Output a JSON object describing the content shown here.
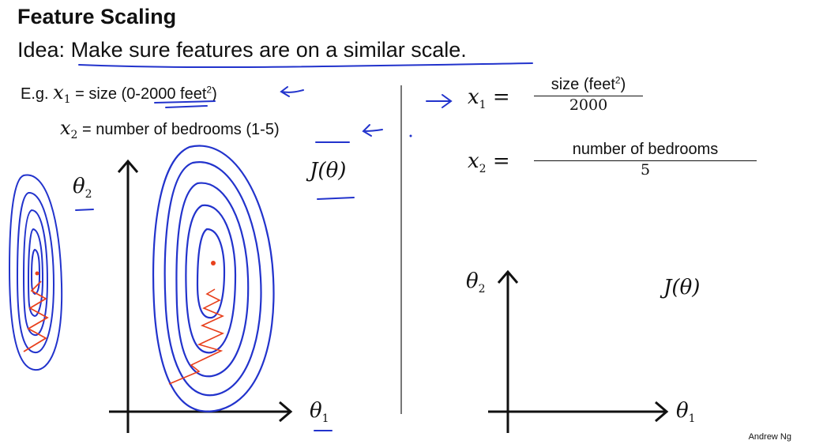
{
  "slide": {
    "title": "Feature Scaling",
    "idea_prefix": "Idea: ",
    "idea_body": "Make sure features are on a similar scale.",
    "eg_label": "E.g. ",
    "x1_sym": "x",
    "x1_sub": "1",
    "x1_desc": " = size (",
    "x1_range": "0-2000",
    "x1_unit": " feet",
    "x1_exp": "2",
    "x1_close": ")",
    "x2_sym": "x",
    "x2_sub": "2",
    "x2_desc": " = number of bedrooms (",
    "x2_range": "1-5",
    "x2_close": ")",
    "eq1_lhs_sym": "x",
    "eq1_lhs_sub": "1",
    "eq1_eq": " = ",
    "eq1_num": "size (feet",
    "eq1_num_exp": "2",
    "eq1_num_close": ")",
    "eq1_den": "2000",
    "eq2_lhs_sym": "x",
    "eq2_lhs_sub": "2",
    "eq2_eq": " = ",
    "eq2_num": "number of bedrooms",
    "eq2_den": "5",
    "left_plot": {
      "y_label": "θ",
      "y_sub": "2",
      "x_label": "θ",
      "x_sub": "1",
      "cost_label": "J(θ)"
    },
    "right_plot": {
      "y_label": "θ",
      "y_sub": "2",
      "x_label": "θ",
      "x_sub": "1",
      "cost_label": "J(θ)"
    },
    "author": "Andrew Ng"
  },
  "colors": {
    "ink": "#111111",
    "pen_blue": "#2233cc",
    "pen_red": "#e8401c",
    "divider": "#777777"
  }
}
